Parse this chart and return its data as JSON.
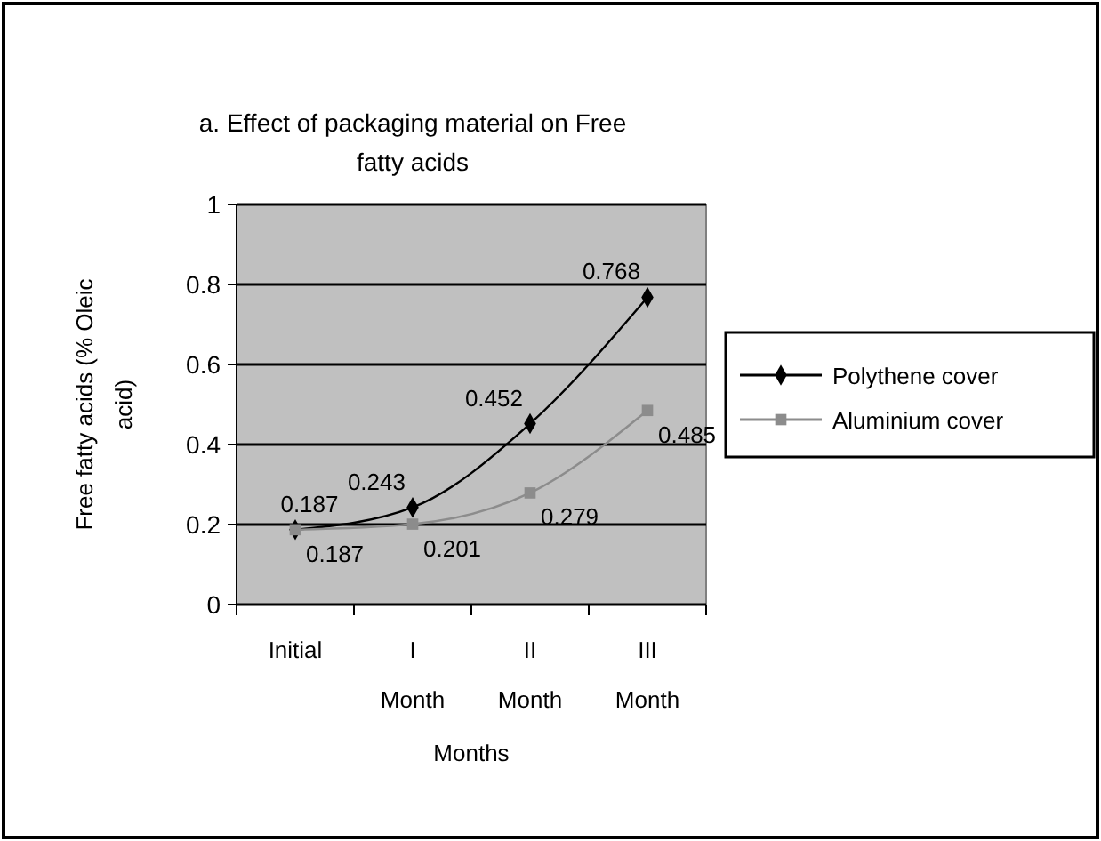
{
  "chart_data": {
    "type": "line",
    "title": "a. Effect of packaging material on Free fatty acids",
    "xlabel": "Months",
    "ylabel": "Free fatty acids (% Oleic acid)",
    "categories": [
      "Initial",
      "I Month",
      "II Month",
      "III Month"
    ],
    "series": [
      {
        "name": "Polythene cover",
        "color": "#000000",
        "marker": "diamond",
        "values": [
          0.187,
          0.243,
          0.452,
          0.768
        ]
      },
      {
        "name": "Aluminium cover",
        "color": "#8c8c8c",
        "marker": "square",
        "values": [
          0.187,
          0.201,
          0.279,
          0.485
        ]
      }
    ],
    "ylim": [
      0,
      1
    ],
    "yticks": [
      0,
      0.2,
      0.4,
      0.6,
      0.8,
      1
    ],
    "grid": "y",
    "legend": "right",
    "data_labels": true
  }
}
